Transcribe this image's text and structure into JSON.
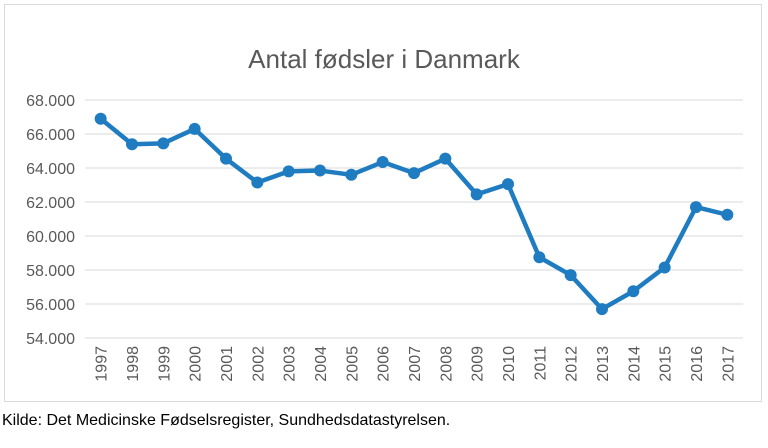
{
  "chart_data": {
    "type": "line",
    "title": "Antal fødsler i Danmark",
    "xlabel": "",
    "ylabel": "",
    "categories": [
      "1997",
      "1998",
      "1999",
      "2000",
      "2001",
      "2002",
      "2003",
      "2004",
      "2005",
      "2006",
      "2007",
      "2008",
      "2009",
      "2010",
      "2011",
      "2012",
      "2013",
      "2014",
      "2015",
      "2016",
      "2017"
    ],
    "series": [
      {
        "values": [
          66900,
          65400,
          65450,
          66300,
          64550,
          63150,
          63800,
          63850,
          63600,
          64350,
          63700,
          64550,
          62450,
          63050,
          58750,
          57700,
          55700,
          56750,
          58150,
          61700,
          61250
        ]
      }
    ],
    "ylim": [
      54000,
      68000
    ],
    "yticks": [
      54000,
      56000,
      58000,
      60000,
      62000,
      64000,
      66000,
      68000
    ],
    "ytick_labels": [
      "54.000",
      "56.000",
      "58.000",
      "60.000",
      "62.000",
      "64.000",
      "66.000",
      "68.000"
    ],
    "grid": true,
    "legend": "none",
    "colors": {
      "line": "#1f7cc1",
      "grid": "#d9d9d9",
      "text": "#595959",
      "title": "#595959"
    }
  },
  "source_note": "Kilde: Det Medicinske Fødselsregister, Sundhedsdatastyrelsen."
}
